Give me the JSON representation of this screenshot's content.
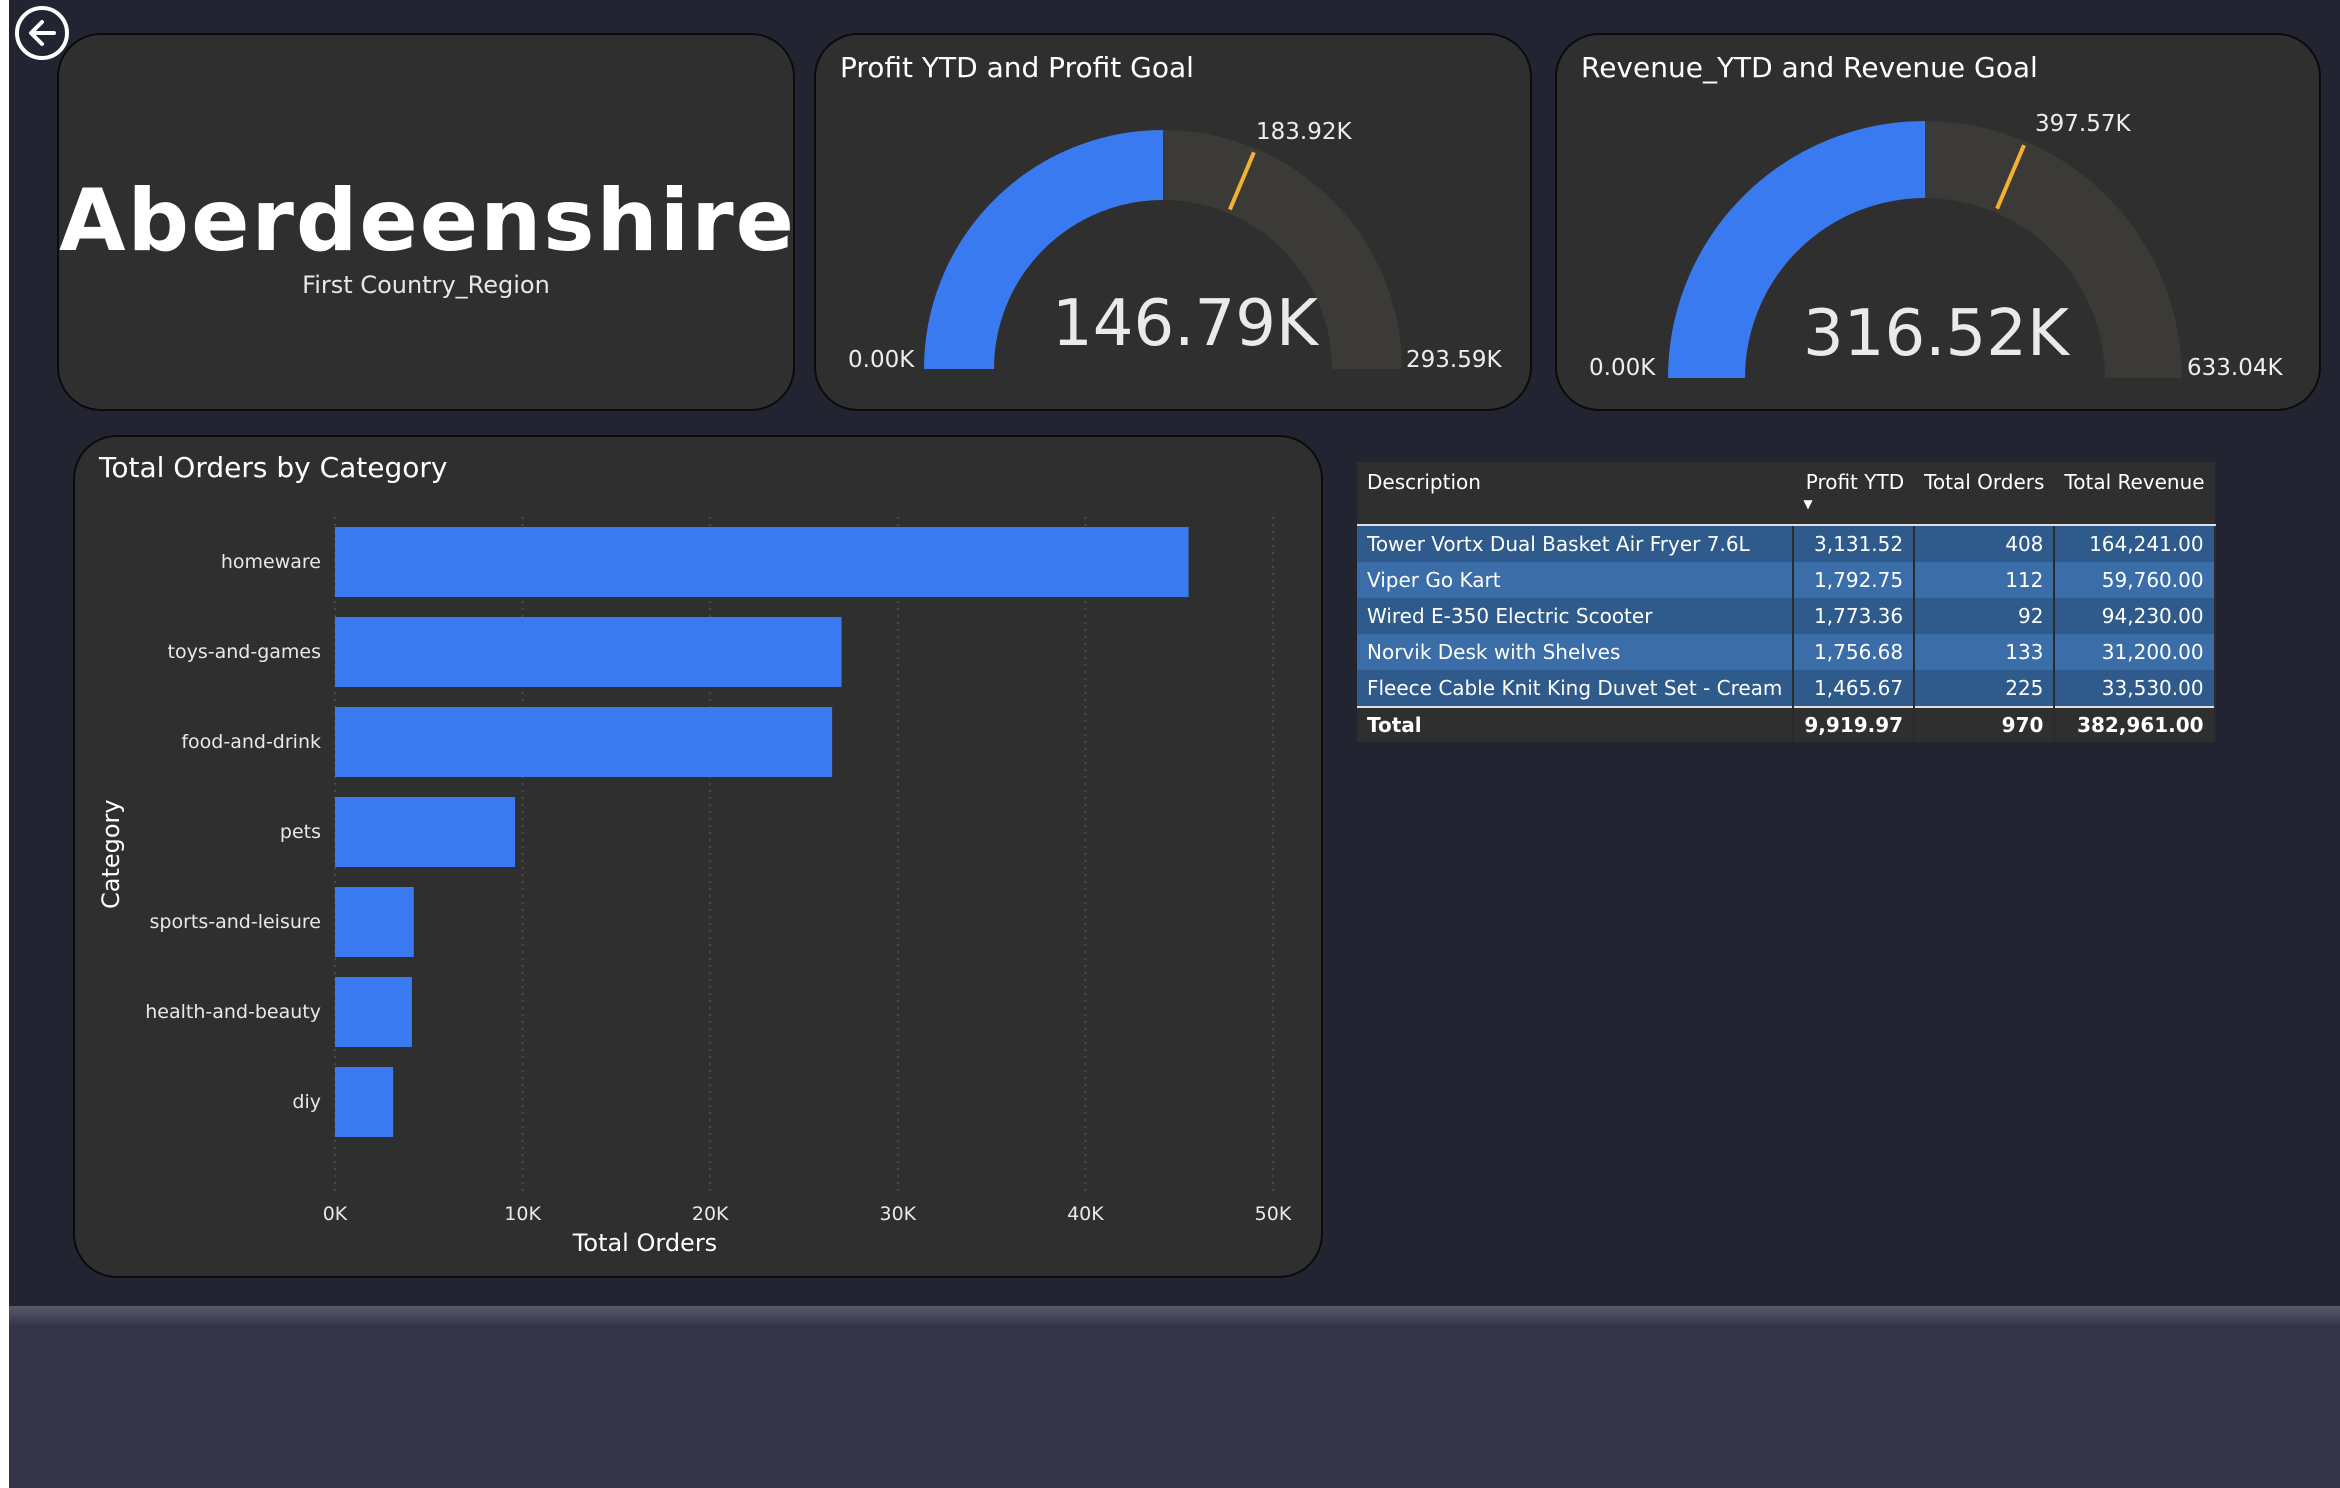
{
  "navigation": {
    "back_icon": "back-arrow-circle-icon"
  },
  "region_card": {
    "name": "Aberdeenshire",
    "label": "First Country_Region"
  },
  "gauges": [
    {
      "title": "Profit YTD and Profit Goal",
      "value_label": "146.79K",
      "min_label": "0.00K",
      "max_label": "293.59K",
      "target_label": "183.92K",
      "value": 146.79,
      "min": 0,
      "max": 293.59,
      "target": 183.92,
      "fill_color": "#3a7af0",
      "track_color": "#3b3a37",
      "target_color": "#f2b134"
    },
    {
      "title": "Revenue_YTD and Revenue Goal",
      "value_label": "316.52K",
      "min_label": "0.00K",
      "max_label": "633.04K",
      "target_label": "397.57K",
      "value": 316.52,
      "min": 0,
      "max": 633.04,
      "target": 397.57,
      "fill_color": "#3a7af0",
      "track_color": "#3b3a37",
      "target_color": "#f2b134"
    }
  ],
  "chart_data": {
    "type": "bar",
    "orientation": "horizontal",
    "title": "Total Orders by Category",
    "xlabel": "Total Orders",
    "ylabel": "Category",
    "categories": [
      "homeware",
      "toys-and-games",
      "food-and-drink",
      "pets",
      "sports-and-leisure",
      "health-and-beauty",
      "diy"
    ],
    "values": [
      45500,
      27000,
      26500,
      9600,
      4200,
      4100,
      3100
    ],
    "xlim": [
      0,
      50000
    ],
    "xticks": [
      0,
      10000,
      20000,
      30000,
      40000,
      50000
    ],
    "xtick_labels": [
      "0K",
      "10K",
      "20K",
      "30K",
      "40K",
      "50K"
    ],
    "grid": "vertical dotted",
    "bar_color": "#3a7af0"
  },
  "table": {
    "columns": [
      "Description",
      "Profit YTD",
      "Total Orders",
      "Total Revenue"
    ],
    "sorted_column": "Profit YTD",
    "sort_direction": "descending",
    "rows": [
      [
        "Tower Vortx Dual Basket Air Fryer 7.6L",
        "3,131.52",
        "408",
        "164,241.00"
      ],
      [
        "Viper Go Kart",
        "1,792.75",
        "112",
        "59,760.00"
      ],
      [
        "Wired E-350 Electric Scooter",
        "1,773.36",
        "92",
        "94,230.00"
      ],
      [
        "Norvik Desk with Shelves",
        "1,756.68",
        "133",
        "31,200.00"
      ],
      [
        "Fleece Cable Knit King Duvet Set - Cream",
        "1,465.67",
        "225",
        "33,530.00"
      ]
    ],
    "total": [
      "Total",
      "9,919.97",
      "970",
      "382,961.00"
    ]
  }
}
